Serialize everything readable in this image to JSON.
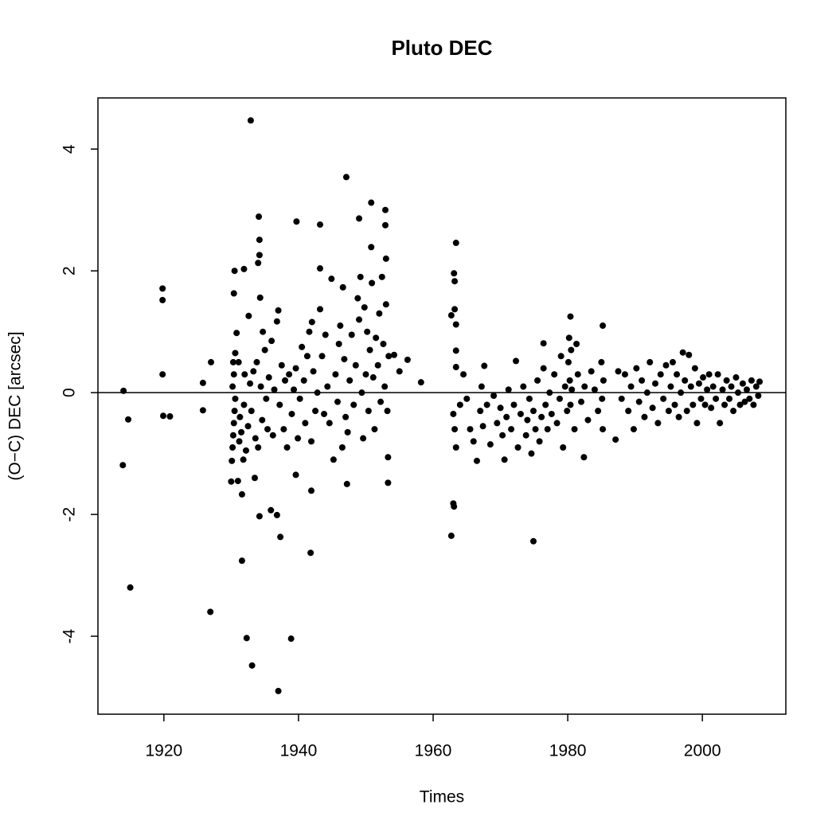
{
  "chart_data": {
    "type": "scatter",
    "title": "Pluto DEC",
    "x_label": "Times",
    "y_label": "(O−C) DEC [arcsec]",
    "xlim": [
      1910.2,
      2012.4
    ],
    "ylim": [
      -5.28,
      4.84
    ],
    "xticks": [
      1920,
      1940,
      1960,
      1980,
      2000
    ],
    "yticks": [
      -4,
      -2,
      0,
      2,
      4
    ],
    "hline": 0,
    "color": "#000000",
    "x": [
      1914.0,
      1913.9,
      1914.7,
      1915.0,
      1919.8,
      1919.8,
      1919.8,
      1919.9,
      1920.9,
      1925.8,
      1925.8,
      1927.0,
      1926.9,
      1930.4,
      1930.5,
      1931.9,
      1931.6,
      1932.3,
      1932.9,
      1933.1,
      1934.1,
      1934.2,
      1934.2,
      1934.0,
      1934.3,
      1934.2,
      1935.9,
      1936.8,
      1937.3,
      1937.0,
      1938.9,
      1939.7,
      1939.6,
      1941.8,
      1941.9,
      1943.2,
      1943.2,
      1947.1,
      1949.0,
      1950.8,
      1950.8,
      1952.9,
      1952.9,
      1953.0,
      1953.3,
      1953.3,
      1947.2,
      1956.2,
      1958.2,
      1963.4,
      1963.1,
      1963.2,
      1963.2,
      1962.7,
      1963.0,
      1963.1,
      1963.4,
      1963.4,
      1963.4,
      1962.7,
      1974.9,
      1976.4,
      1980.4,
      1981.3,
      1982.4,
      1985.2,
      1987.1,
      1930.0,
      1930.1,
      1930.2,
      1930.3,
      1930.4,
      1930.5,
      1930.6,
      1930.2,
      1930.4,
      1930.3,
      1930.6,
      1930.8,
      1931.0,
      1931.2,
      1931.3,
      1931.5,
      1931.1,
      1931.6,
      1931.8,
      1931.9,
      1932.0,
      1932.2,
      1932.5,
      1932.6,
      1932.8,
      1933.0,
      1933.3,
      1933.5,
      1933.6,
      1933.8,
      1934.0,
      1934.4,
      1934.6,
      1934.7,
      1935.0,
      1935.2,
      1935.4,
      1935.6,
      1936.0,
      1936.2,
      1936.4,
      1936.8,
      1937.0,
      1937.2,
      1937.5,
      1937.8,
      1938.0,
      1938.3,
      1938.6,
      1939.0,
      1939.3,
      1939.6,
      1939.9,
      1940.2,
      1940.5,
      1940.8,
      1941.0,
      1941.3,
      1941.6,
      1941.9,
      1942.0,
      1942.2,
      1942.5,
      1942.8,
      1943.2,
      1943.5,
      1943.8,
      1944.0,
      1944.3,
      1944.6,
      1944.9,
      1945.2,
      1945.5,
      1945.8,
      1946.0,
      1946.2,
      1946.5,
      1946.8,
      1946.6,
      1947.0,
      1947.3,
      1947.6,
      1947.9,
      1948.2,
      1948.5,
      1948.8,
      1949.0,
      1949.2,
      1949.4,
      1949.6,
      1949.8,
      1950.0,
      1950.2,
      1950.4,
      1950.6,
      1950.9,
      1951.1,
      1951.3,
      1951.5,
      1951.8,
      1952.0,
      1952.2,
      1952.4,
      1952.6,
      1952.8,
      1953.0,
      1953.2,
      1953.4,
      1954.2,
      1955.0,
      1963.0,
      1963.2,
      1963.4,
      1964.0,
      1964.5,
      1965.0,
      1965.5,
      1966.0,
      1966.5,
      1967.0,
      1967.2,
      1967.4,
      1967.6,
      1968.0,
      1968.5,
      1969.0,
      1969.5,
      1970.0,
      1970.3,
      1970.6,
      1970.9,
      1971.2,
      1971.6,
      1972.0,
      1972.3,
      1972.6,
      1973.0,
      1973.4,
      1973.8,
      1974.0,
      1974.3,
      1974.6,
      1974.9,
      1975.2,
      1975.5,
      1975.8,
      1976.1,
      1976.4,
      1976.7,
      1977.0,
      1977.3,
      1977.6,
      1978.0,
      1978.4,
      1978.8,
      1979.0,
      1979.3,
      1979.6,
      1979.9,
      1980.1,
      1980.2,
      1980.3,
      1980.4,
      1980.5,
      1980.6,
      1981.0,
      1981.5,
      1982.0,
      1982.5,
      1983.0,
      1983.5,
      1984.0,
      1984.5,
      1985.0,
      1985.1,
      1985.2,
      1985.3,
      1987.5,
      1988.0,
      1988.5,
      1989.0,
      1989.4,
      1989.8,
      1990.2,
      1990.6,
      1991.0,
      1991.4,
      1991.8,
      1992.2,
      1992.6,
      1993.0,
      1993.4,
      1993.8,
      1994.2,
      1994.6,
      1995.0,
      1995.3,
      1995.6,
      1995.9,
      1996.2,
      1996.5,
      1996.8,
      1997.1,
      1997.4,
      1997.7,
      1998.0,
      1998.3,
      1998.6,
      1998.9,
      1999.2,
      1999.5,
      1999.8,
      2000.1,
      2000.4,
      2000.7,
      2001.0,
      2001.3,
      2001.6,
      2002.0,
      2002.3,
      2002.6,
      2003.0,
      2003.3,
      2003.6,
      2004.0,
      2004.3,
      2004.6,
      2005.0,
      2005.3,
      2005.6,
      2006.0,
      2006.3,
      2006.6,
      2007.0,
      2007.3,
      2007.6,
      2008.0,
      2008.3,
      2008.5
    ],
    "values": [
      0.03,
      -1.19,
      -0.44,
      -3.2,
      1.71,
      1.52,
      0.3,
      -0.38,
      -0.39,
      0.16,
      -0.29,
      0.5,
      -3.6,
      1.63,
      2.0,
      2.03,
      -2.76,
      -4.03,
      4.47,
      -4.48,
      2.89,
      2.51,
      2.26,
      2.13,
      1.56,
      -2.03,
      -1.93,
      -2.01,
      -2.37,
      -4.9,
      -4.04,
      2.81,
      -1.35,
      -2.63,
      -1.61,
      2.76,
      2.04,
      3.54,
      2.86,
      3.12,
      2.39,
      3.0,
      2.75,
      2.2,
      -1.06,
      -1.48,
      -1.5,
      0.54,
      0.17,
      2.46,
      1.96,
      1.83,
      1.37,
      -2.35,
      -1.82,
      -1.87,
      1.12,
      0.69,
      0.42,
      1.27,
      -2.44,
      0.81,
      1.25,
      0.8,
      -1.06,
      1.1,
      -0.77,
      -1.46,
      -1.12,
      -0.9,
      -0.7,
      -0.5,
      -0.3,
      -0.1,
      0.1,
      0.3,
      0.5,
      0.65,
      0.98,
      -1.45,
      -0.8,
      -0.4,
      -0.65,
      0.5,
      -1.67,
      -1.1,
      -0.2,
      0.3,
      -0.95,
      -0.55,
      1.26,
      0.15,
      -0.3,
      0.35,
      -1.4,
      -0.75,
      0.5,
      -0.9,
      0.1,
      -0.45,
      1.0,
      0.7,
      -0.1,
      -0.6,
      0.25,
      0.85,
      -0.7,
      0.05,
      1.17,
      1.35,
      -0.2,
      0.45,
      -0.6,
      0.2,
      -0.9,
      0.3,
      -0.35,
      0.05,
      0.4,
      -0.75,
      -0.1,
      0.75,
      0.2,
      -0.5,
      0.6,
      1.0,
      -0.8,
      1.16,
      0.35,
      -0.3,
      0.0,
      1.37,
      0.6,
      -0.35,
      0.95,
      0.1,
      -0.5,
      1.87,
      -1.1,
      0.3,
      -0.15,
      0.8,
      1.1,
      -0.9,
      0.55,
      1.73,
      -0.4,
      -0.65,
      0.2,
      0.95,
      -0.2,
      0.45,
      1.55,
      1.2,
      1.9,
      0.0,
      -0.75,
      1.4,
      0.3,
      1.0,
      -0.3,
      0.7,
      1.8,
      0.25,
      -0.6,
      0.9,
      0.45,
      1.3,
      -0.15,
      1.9,
      0.8,
      0.1,
      1.45,
      -0.3,
      0.6,
      0.62,
      0.35,
      -0.35,
      -0.6,
      -0.9,
      -0.2,
      0.3,
      -0.1,
      -0.6,
      -0.8,
      -1.12,
      -0.3,
      0.1,
      -0.55,
      0.44,
      -0.2,
      -0.85,
      -0.05,
      -0.5,
      -0.25,
      -0.7,
      -1.1,
      -0.4,
      0.05,
      -0.6,
      -0.2,
      0.52,
      -0.9,
      -0.35,
      0.1,
      -0.7,
      -0.45,
      -0.1,
      -1.0,
      -0.3,
      -0.6,
      0.2,
      -0.8,
      -0.4,
      0.4,
      -0.2,
      -0.6,
      0.0,
      -0.35,
      0.3,
      -0.5,
      -0.1,
      0.6,
      -0.9,
      0.1,
      -0.3,
      0.5,
      0.9,
      0.2,
      -0.2,
      0.7,
      0.05,
      -0.6,
      0.3,
      -0.15,
      0.1,
      -0.45,
      0.35,
      0.05,
      -0.3,
      0.5,
      -0.1,
      -0.6,
      0.2,
      0.35,
      -0.1,
      0.3,
      -0.3,
      0.1,
      -0.6,
      0.4,
      -0.15,
      0.2,
      -0.4,
      0.0,
      0.5,
      -0.25,
      0.15,
      -0.5,
      0.3,
      -0.1,
      0.45,
      -0.3,
      0.1,
      0.5,
      -0.2,
      0.3,
      -0.4,
      0.0,
      0.66,
      0.2,
      -0.3,
      0.62,
      0.1,
      -0.2,
      0.4,
      -0.5,
      0.15,
      -0.1,
      0.25,
      -0.2,
      0.05,
      0.3,
      -0.25,
      0.1,
      -0.1,
      0.3,
      -0.5,
      0.05,
      -0.2,
      0.2,
      -0.1,
      0.1,
      -0.3,
      0.25,
      0.0,
      -0.2,
      0.15,
      -0.15,
      0.05,
      -0.1,
      0.2,
      -0.2,
      0.1,
      -0.05,
      0.18
    ]
  }
}
